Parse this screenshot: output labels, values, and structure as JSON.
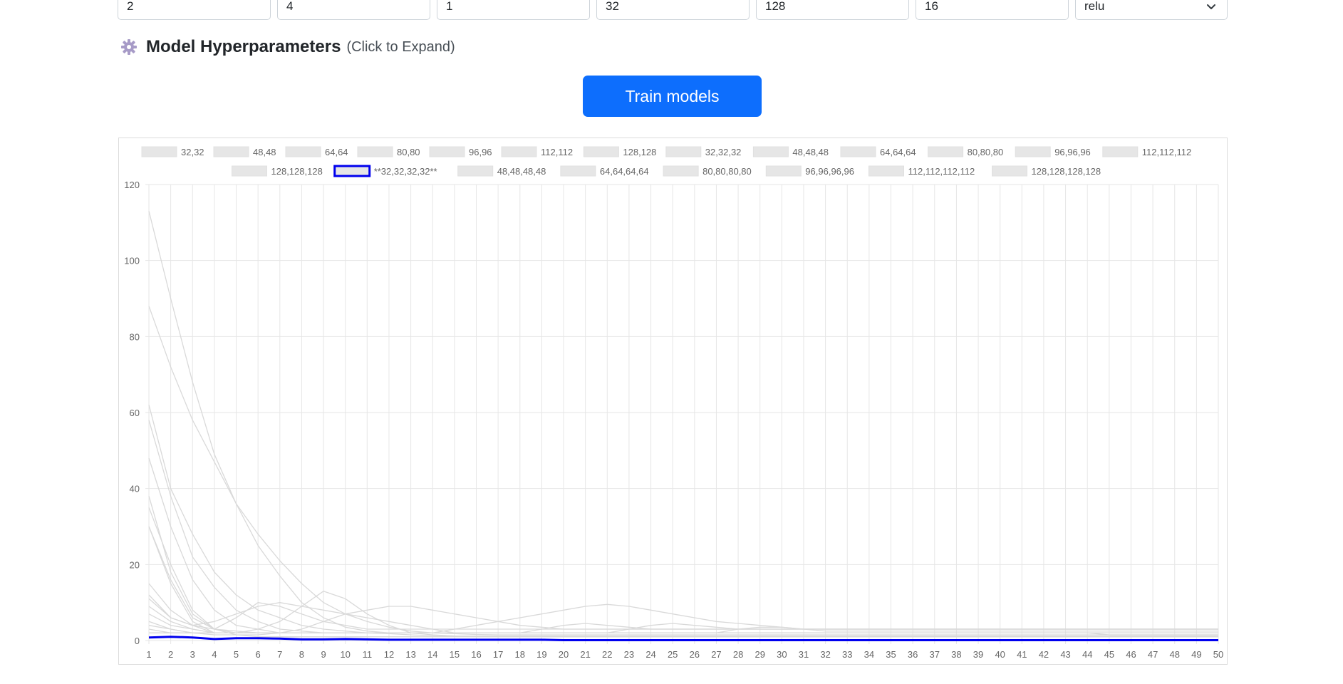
{
  "inputs": [
    {
      "value": "2",
      "type": "text"
    },
    {
      "value": "4",
      "type": "text"
    },
    {
      "value": "1",
      "type": "text"
    },
    {
      "value": "32",
      "type": "text"
    },
    {
      "value": "128",
      "type": "text"
    },
    {
      "value": "16",
      "type": "text"
    },
    {
      "value": "relu",
      "type": "select"
    }
  ],
  "hyperparams": {
    "title": "Model Hyperparameters",
    "hint": "(Click to Expand)",
    "icon": "gear-icon"
  },
  "train_button": {
    "label": "Train models",
    "color": "#0d6efd"
  },
  "colors": {
    "highlight": "#0000ee",
    "series": "#d9d9d9",
    "legend_box": "#e6e6e6",
    "grid": "#e6e6e6"
  },
  "chart_data": {
    "type": "line",
    "title": "",
    "xlabel": "",
    "ylabel": "",
    "ylim": [
      0,
      120
    ],
    "yticks": [
      0,
      20,
      40,
      60,
      80,
      100,
      120
    ],
    "x": [
      1,
      2,
      3,
      4,
      5,
      6,
      7,
      8,
      9,
      10,
      11,
      12,
      13,
      14,
      15,
      16,
      17,
      18,
      19,
      20,
      21,
      22,
      23,
      24,
      25,
      26,
      27,
      28,
      29,
      30,
      31,
      32,
      33,
      34,
      35,
      36,
      37,
      38,
      39,
      40,
      41,
      42,
      43,
      44,
      45,
      46,
      47,
      48,
      49,
      50
    ],
    "grid": true,
    "legend_position": "top",
    "legend_row1": [
      "32,32",
      "48,48",
      "64,64",
      "80,80",
      "96,96",
      "112,112",
      "128,128",
      "32,32,32",
      "48,48,48",
      "64,64,64",
      "80,80,80",
      "96,96,96",
      "112,112,112"
    ],
    "legend_row2": [
      "128,128,128",
      "**32,32,32,32**",
      "48,48,48,48",
      "64,64,64,64",
      "80,80,80,80",
      "96,96,96,96",
      "112,112,112,112",
      "128,128,128,128"
    ],
    "highlight_series": "**32,32,32,32**",
    "series": [
      {
        "name": "32,32",
        "values": [
          35,
          20,
          8,
          3,
          1.5,
          1,
          1,
          1,
          1,
          1,
          1,
          1,
          1,
          1,
          1,
          1,
          1,
          1,
          1,
          1,
          1,
          1,
          1,
          1,
          1,
          1,
          1,
          1,
          1,
          1,
          1,
          1,
          1,
          1,
          1,
          1,
          1,
          1,
          1,
          1,
          1,
          1,
          1,
          1,
          1,
          1,
          1,
          1,
          1,
          1
        ]
      },
      {
        "name": "48,48",
        "values": [
          30,
          15,
          5,
          2,
          2,
          3,
          5,
          9,
          13,
          11,
          7,
          4,
          2,
          1.5,
          1.2,
          1,
          1,
          1,
          1,
          1,
          1,
          1,
          1,
          1,
          1,
          1,
          1,
          1,
          1,
          1,
          1,
          1,
          1,
          1,
          1,
          1,
          1,
          1,
          1,
          1,
          1,
          1,
          1,
          1,
          1,
          1,
          1,
          1,
          1,
          1
        ]
      },
      {
        "name": "64,64",
        "values": [
          113,
          90,
          68,
          49,
          36,
          25,
          17,
          10,
          6,
          3.5,
          2.5,
          2,
          2,
          2,
          2,
          2,
          2,
          2,
          2,
          2,
          2,
          2,
          2,
          2,
          2,
          2,
          2,
          2,
          2,
          2,
          2,
          2,
          2,
          2,
          2,
          2,
          2,
          2,
          2,
          2,
          2,
          2,
          2,
          2,
          2,
          2,
          2,
          2,
          2,
          2
        ]
      },
      {
        "name": "80,80",
        "values": [
          88,
          72,
          58,
          47,
          36,
          28,
          21,
          15,
          10,
          7,
          5,
          3.5,
          2.5,
          2,
          1.8,
          1.6,
          1.5,
          1.5,
          1.5,
          1.5,
          1.5,
          1.5,
          1.5,
          1.5,
          1.5,
          1.5,
          1.5,
          1.5,
          1.5,
          1.5,
          1.5,
          1.5,
          1.5,
          1.5,
          1.5,
          1.5,
          1.5,
          1.5,
          1.5,
          1.5,
          1.5,
          1.5,
          1.5,
          1.5,
          1.5,
          1.5,
          1.5,
          1.5,
          1.5,
          1.5
        ]
      },
      {
        "name": "96,96",
        "values": [
          62,
          40,
          28,
          18,
          12,
          8,
          6,
          4,
          3,
          2.5,
          2,
          1.8,
          1.5,
          1.3,
          1.2,
          1.2,
          1.2,
          1.2,
          1.2,
          1.2,
          1.2,
          1.2,
          1.2,
          1.2,
          1.2,
          1.2,
          1.2,
          1.2,
          1.2,
          1.2,
          1.2,
          1.2,
          1.2,
          1.2,
          1.2,
          1.2,
          1.2,
          1.2,
          1.2,
          1.2,
          1.2,
          1.2,
          1.2,
          1.2,
          1.2,
          1.2,
          1.2,
          1.2,
          1.2,
          1.2
        ]
      },
      {
        "name": "112,112",
        "values": [
          58,
          38,
          22,
          14,
          8,
          5,
          3,
          2.5,
          2,
          2,
          2,
          2,
          2,
          2,
          2,
          2,
          2,
          2,
          2,
          2,
          2,
          2,
          2,
          2,
          2,
          2,
          2,
          2,
          2,
          2,
          2,
          2,
          2,
          2,
          2,
          2,
          2,
          2,
          2,
          2,
          2,
          2,
          2,
          2,
          2,
          2,
          2,
          2,
          2,
          2
        ]
      },
      {
        "name": "128,128",
        "values": [
          48,
          30,
          16,
          8,
          4,
          3,
          2,
          2,
          2,
          2,
          2,
          2,
          2,
          2,
          2,
          2,
          2,
          2,
          2,
          2,
          2,
          2,
          2,
          2,
          2,
          2,
          2,
          2,
          2,
          2,
          2,
          2,
          2,
          2,
          2,
          2,
          2,
          2,
          2,
          2,
          2,
          2,
          2,
          2,
          2,
          2,
          2,
          2,
          2,
          2
        ]
      },
      {
        "name": "32,32,32",
        "values": [
          38,
          18,
          7,
          3,
          2,
          2,
          2,
          2,
          2,
          2,
          2,
          2,
          2,
          2,
          2,
          2,
          2,
          2,
          2,
          2,
          2,
          2,
          2,
          2,
          2,
          2,
          2,
          2,
          2,
          2,
          2,
          2,
          2,
          2,
          2,
          2,
          2,
          2,
          2,
          2,
          2,
          2,
          2,
          2,
          2,
          2,
          2,
          2,
          2,
          2
        ]
      },
      {
        "name": "48,48,48",
        "values": [
          15,
          8,
          4,
          2,
          2,
          2,
          2,
          2,
          2,
          2,
          2,
          2,
          2,
          2,
          2,
          2,
          2,
          2,
          2,
          2,
          2,
          2,
          2,
          2,
          2,
          2,
          2,
          2,
          2,
          2,
          2,
          2,
          2,
          2,
          2,
          2,
          2,
          2,
          2,
          2,
          2,
          2,
          2,
          2,
          2,
          2,
          2,
          2,
          2,
          2
        ]
      },
      {
        "name": "64,64,64",
        "values": [
          30,
          16,
          6,
          3,
          6,
          10,
          9,
          7,
          5,
          4,
          3,
          3,
          3,
          3,
          3,
          3,
          3,
          3,
          3,
          3,
          3,
          3,
          3,
          3,
          3,
          3,
          3,
          3,
          3,
          3,
          3,
          3,
          3,
          3,
          3,
          3,
          3,
          3,
          3,
          3,
          3,
          3,
          3,
          3,
          3,
          3,
          3,
          3,
          3,
          3
        ]
      },
      {
        "name": "80,80,80",
        "values": [
          11,
          6,
          4,
          3,
          2.5,
          2,
          2,
          2,
          2,
          2,
          2,
          2,
          2,
          2,
          2,
          2,
          2,
          2,
          2,
          2,
          2,
          2,
          2,
          2,
          2,
          2,
          2,
          2,
          2,
          2,
          2,
          2,
          2,
          2,
          2,
          2,
          2,
          2,
          2,
          2,
          2,
          2,
          2,
          2,
          2,
          2,
          2,
          2,
          2,
          2
        ]
      },
      {
        "name": "96,96,96",
        "values": [
          12,
          6,
          4,
          5,
          7,
          9,
          10,
          9,
          8,
          7,
          6,
          5,
          4,
          3,
          2,
          2,
          2,
          2,
          2,
          2,
          2,
          2,
          2,
          2,
          2,
          2,
          2,
          2,
          2,
          2,
          2,
          2,
          2,
          2,
          2,
          2,
          2,
          2,
          2,
          2,
          2,
          2,
          2,
          2,
          2,
          2,
          2,
          2,
          2,
          2
        ]
      },
      {
        "name": "112,112,112",
        "values": [
          9,
          5,
          3,
          2,
          2,
          2,
          2,
          2,
          2,
          2,
          2,
          2,
          2,
          2,
          2,
          2,
          2,
          2,
          2,
          2,
          2,
          2,
          2,
          2,
          2,
          2,
          2,
          2,
          2,
          2,
          2,
          2,
          2,
          2,
          2,
          2,
          2,
          2,
          2,
          2,
          2,
          2,
          2,
          2,
          2,
          2,
          2,
          2,
          2,
          2
        ]
      },
      {
        "name": "128,128,128",
        "values": [
          7,
          4,
          3,
          2,
          2,
          2,
          2,
          2,
          2,
          2,
          2,
          2,
          2,
          2,
          2,
          2,
          2,
          2,
          2,
          2,
          2,
          2,
          2,
          2,
          2,
          2,
          2,
          2,
          2,
          2,
          2,
          2,
          2,
          2,
          2,
          2,
          2,
          2,
          2,
          2,
          2,
          2,
          2,
          2,
          2,
          2,
          2,
          2,
          2,
          2
        ]
      },
      {
        "name": "**32,32,32,32**",
        "values": [
          0.8,
          1,
          0.8,
          0.4,
          0.6,
          0.6,
          0.5,
          0.3,
          0.3,
          0.4,
          0.3,
          0.2,
          0.2,
          0.2,
          0.2,
          0.2,
          0.2,
          0.2,
          0.2,
          0.1,
          0.1,
          0.1,
          0.1,
          0.1,
          0.1,
          0.1,
          0.1,
          0.1,
          0.1,
          0.1,
          0.1,
          0.1,
          0.1,
          0.1,
          0.1,
          0.1,
          0.1,
          0.1,
          0.1,
          0.1,
          0.1,
          0.1,
          0.1,
          0.1,
          0.1,
          0.1,
          0.1,
          0.1,
          0.1,
          0.1
        ]
      },
      {
        "name": "48,48,48,48",
        "values": [
          5,
          3,
          2,
          1.5,
          1.5,
          1.5,
          2,
          3,
          5,
          7,
          8,
          9,
          9,
          8,
          7,
          6,
          5,
          4,
          3.5,
          3,
          3,
          3,
          3,
          3,
          3,
          3,
          3,
          3,
          3,
          3,
          3,
          3,
          3,
          3,
          3,
          3,
          3,
          3,
          3,
          3,
          3,
          3,
          3,
          3,
          3,
          3,
          3,
          3,
          3,
          3
        ]
      },
      {
        "name": "64,64,64,64",
        "values": [
          4,
          3,
          2,
          2,
          2,
          2,
          2,
          2,
          2,
          2,
          2,
          2,
          2,
          2,
          3,
          4,
          5,
          6,
          7,
          8,
          9,
          9.5,
          9,
          8,
          7,
          6,
          5,
          4.5,
          4,
          3.5,
          3,
          3,
          3,
          3,
          3,
          3,
          3,
          3,
          3,
          3,
          3,
          3,
          3,
          3,
          3,
          3,
          3,
          3,
          3,
          3
        ]
      },
      {
        "name": "80,80,80,80",
        "values": [
          3,
          2,
          2,
          2,
          2,
          2,
          2,
          2,
          2,
          2,
          2,
          2,
          2,
          2,
          2,
          2,
          2,
          2,
          3,
          4,
          4.5,
          4,
          3.5,
          3,
          3,
          3,
          3,
          3,
          3,
          3,
          3,
          3,
          3,
          3,
          3,
          3,
          3,
          3,
          3,
          3,
          3,
          3,
          3,
          3,
          3,
          3,
          3,
          3,
          3,
          3
        ]
      },
      {
        "name": "96,96,96,96",
        "values": [
          2,
          2,
          2,
          2,
          2,
          2,
          2,
          2,
          2,
          2,
          2,
          2,
          2,
          2,
          2,
          2,
          2,
          2,
          2,
          2,
          2,
          2,
          3,
          4,
          4.5,
          4,
          3.5,
          3,
          3,
          3,
          3,
          3,
          3,
          3,
          3,
          3,
          3,
          3,
          3,
          3,
          3,
          3,
          3,
          3,
          3,
          3,
          3,
          3,
          3,
          3
        ]
      },
      {
        "name": "112,112,112,112",
        "values": [
          2,
          2,
          2,
          2,
          2,
          2,
          2,
          2,
          2,
          2,
          2,
          2,
          2,
          2,
          2,
          2,
          2,
          2,
          2,
          2,
          2,
          2,
          2,
          2,
          2,
          2,
          2,
          3,
          3.5,
          3.5,
          3,
          2.5,
          2.5,
          2.5,
          2.5,
          2.5,
          2.5,
          2.5,
          2.5,
          2.5,
          2.5,
          2.5,
          2.5,
          2.5,
          2.5,
          2.5,
          2.5,
          2.5,
          2.5,
          2.5
        ]
      },
      {
        "name": "128,128,128,128",
        "values": [
          2,
          2,
          2,
          2,
          2,
          2,
          2,
          2,
          2,
          2,
          2,
          2,
          2,
          2,
          2,
          2,
          2,
          2,
          2,
          2,
          2,
          2,
          2,
          2,
          2,
          2,
          2,
          2,
          2,
          2,
          2,
          2,
          2,
          2,
          2,
          2,
          2,
          2,
          2,
          2,
          2,
          2,
          2,
          2,
          1.5,
          1.5,
          1.5,
          1.5,
          1.5,
          1.5
        ]
      }
    ]
  }
}
